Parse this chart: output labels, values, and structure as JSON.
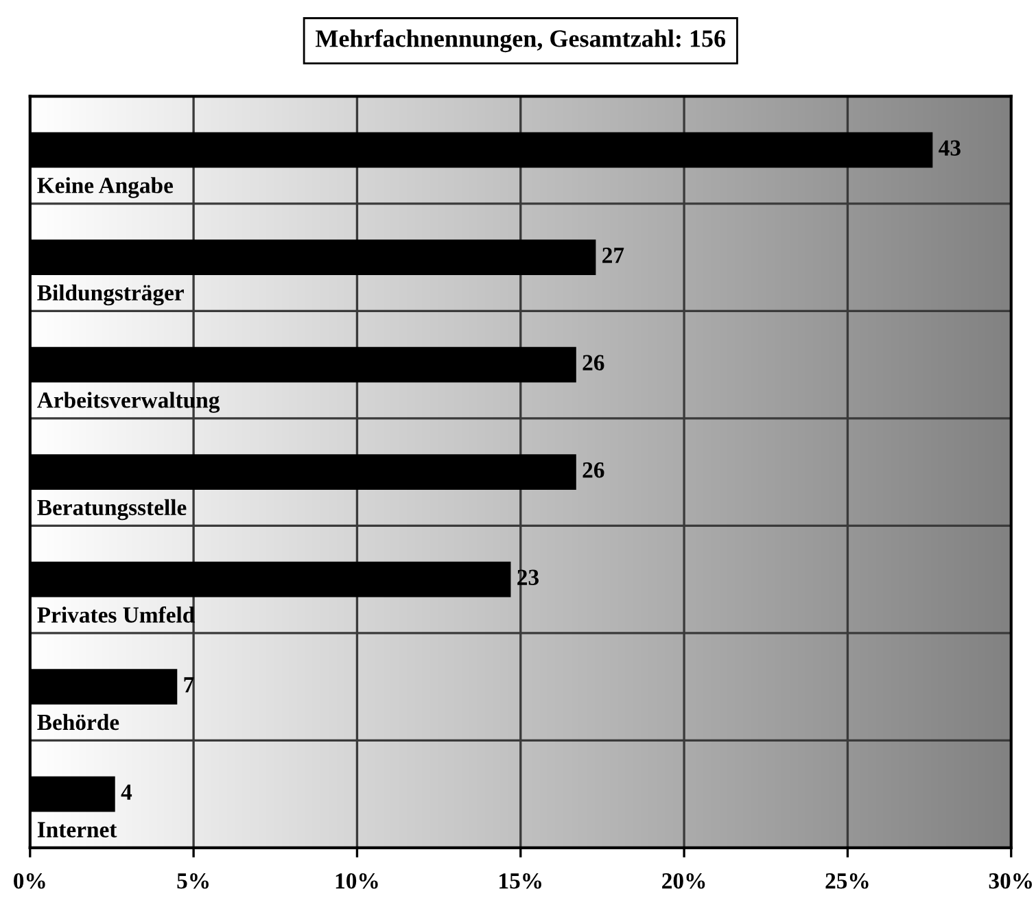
{
  "chart_data": {
    "type": "bar",
    "orientation": "horizontal",
    "title": "Mehrfachnennungen, Gesamtzahl: 156",
    "categories": [
      "Keine Angabe",
      "Bildungsträger",
      "Arbeitsverwaltung",
      "Beratungsstelle",
      "Privates Umfeld",
      "Behörde",
      "Internet"
    ],
    "values": [
      27.6,
      17.3,
      16.7,
      16.7,
      14.7,
      4.5,
      2.6
    ],
    "annotations": [
      "43",
      "27",
      "26",
      "26",
      "23",
      "7",
      "4"
    ],
    "color": "#000000",
    "xlim": [
      0,
      30
    ],
    "xticks": [
      {
        "value": 0,
        "label": "0%"
      },
      {
        "value": 5,
        "label": "5%"
      },
      {
        "value": 10,
        "label": "10%"
      },
      {
        "value": 15,
        "label": "15%"
      },
      {
        "value": 20,
        "label": "20%"
      },
      {
        "value": 25,
        "label": "25%"
      },
      {
        "value": 30,
        "label": "30%"
      }
    ],
    "grid": true
  }
}
